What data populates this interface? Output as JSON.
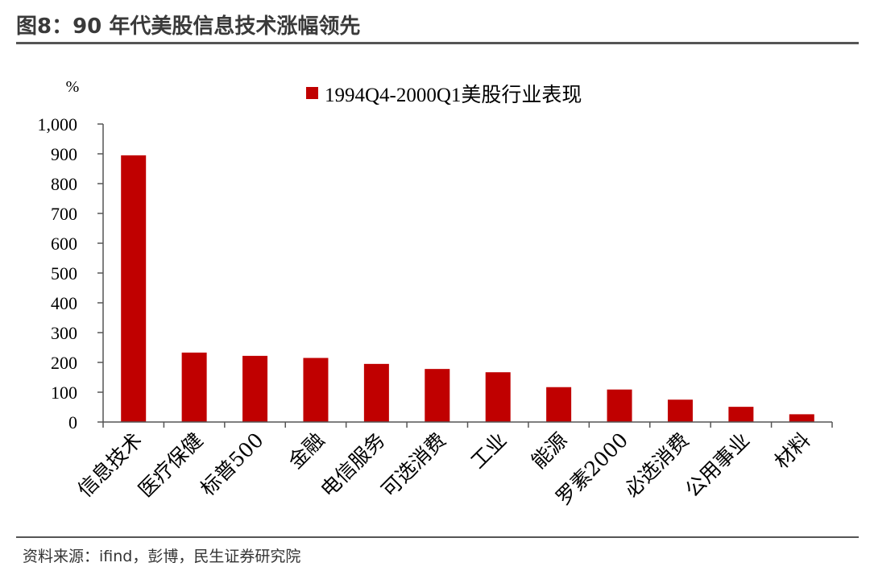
{
  "header": {
    "title": "图8：90 年代美股信息技术涨幅领先"
  },
  "footer": {
    "source": "资料来源：ifind，彭博，民生证券研究院"
  },
  "chart_data": {
    "type": "bar",
    "ylabel": "%",
    "ylim": [
      0,
      1000
    ],
    "yticks": [
      0,
      100,
      200,
      300,
      400,
      500,
      600,
      700,
      800,
      900,
      1000
    ],
    "ytick_labels": [
      "0",
      "100",
      "200",
      "300",
      "400",
      "500",
      "600",
      "700",
      "800",
      "900",
      "1,000"
    ],
    "legend_position": "top",
    "grid": false,
    "categories": [
      "信息技术",
      "医疗保健",
      "标普500",
      "金融",
      "电信服务",
      "可选消费",
      "工业",
      "能源",
      "罗素2000",
      "必选消费",
      "公用事业",
      "材料"
    ],
    "series": [
      {
        "name": "1994Q4-2000Q1美股行业表现",
        "color": "#c00000",
        "values": [
          895,
          233,
          222,
          215,
          195,
          178,
          167,
          117,
          109,
          75,
          51,
          26
        ]
      }
    ]
  }
}
